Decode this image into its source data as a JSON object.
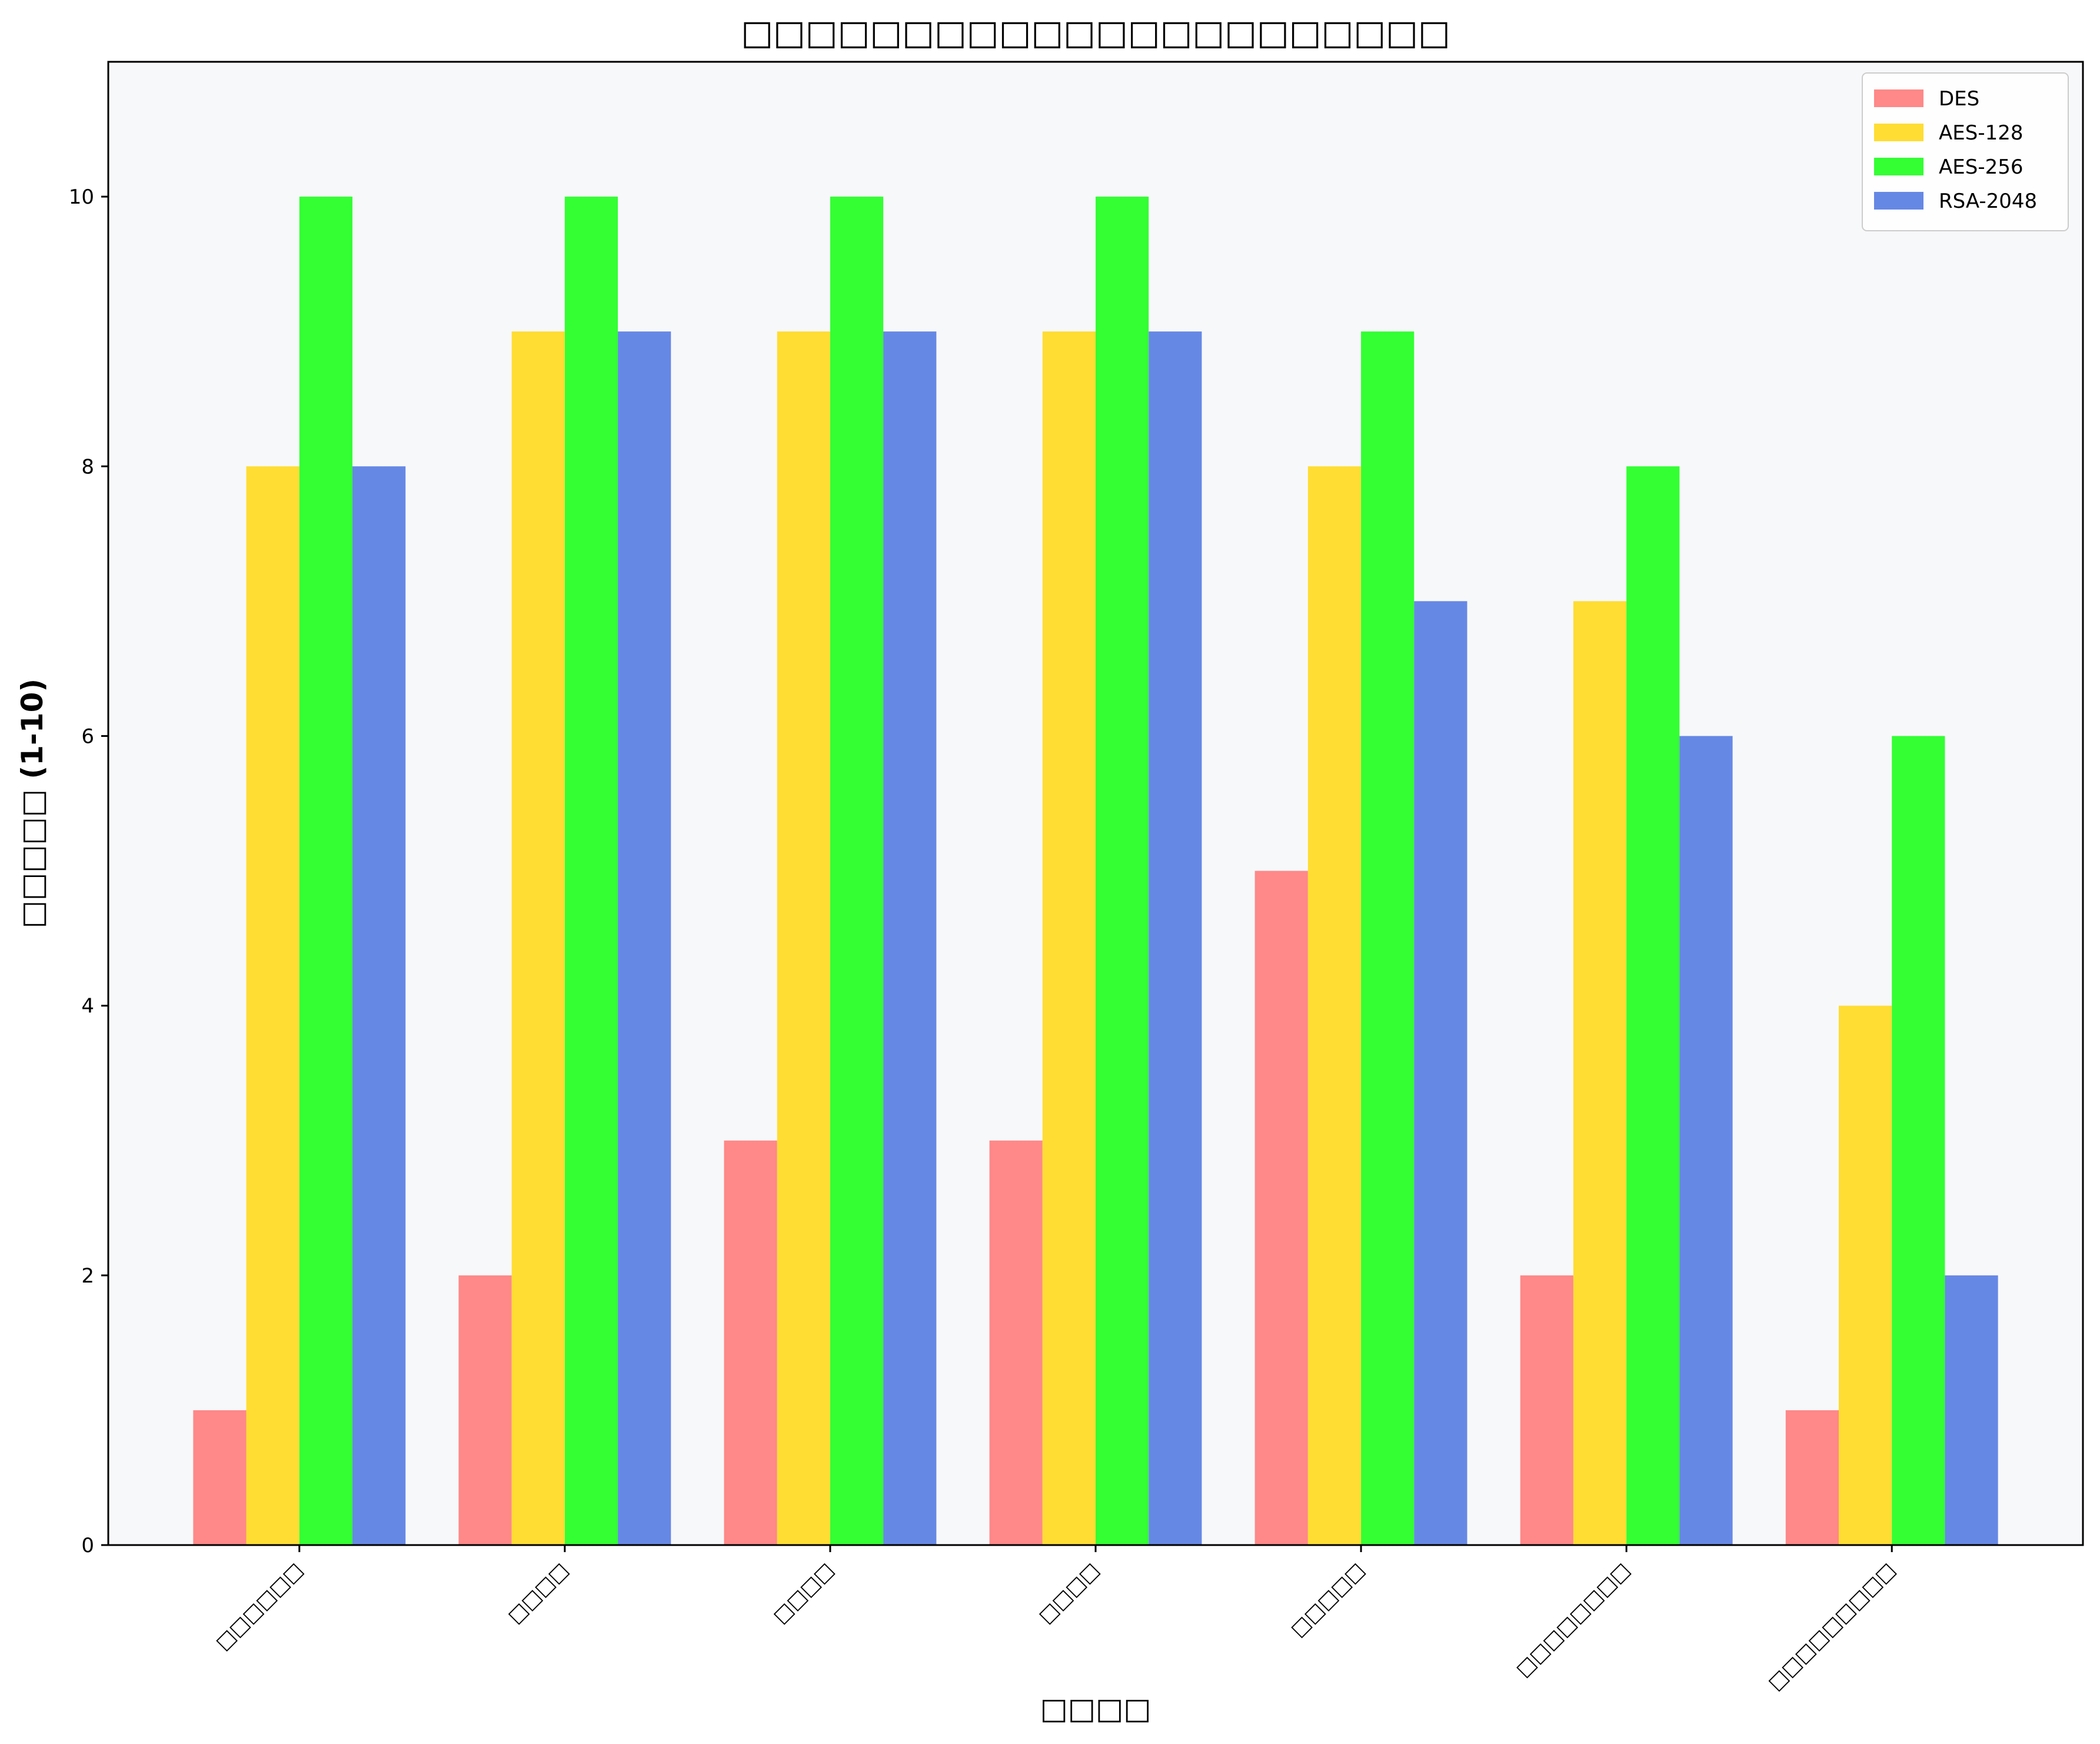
{
  "chart_data": {
    "type": "bar",
    "title": "□□□□□□□□□□□□□□□□□□□□□□",
    "xlabel": "□□□□",
    "ylabel": "□□□□□ (1-10)",
    "categories": [
      "□□□□□□",
      "□□□□",
      "□□□□",
      "□□□□",
      "□□□□□",
      "□□□□□□□□",
      "□□□□□□□□□"
    ],
    "series": [
      {
        "name": "DES",
        "color": "#ff8888",
        "values": [
          1,
          2,
          3,
          3,
          5,
          2,
          1
        ]
      },
      {
        "name": "AES-128",
        "color": "#ffdd33",
        "values": [
          8,
          9,
          9,
          9,
          8,
          7,
          4
        ]
      },
      {
        "name": "AES-256",
        "color": "#33ff33",
        "values": [
          10,
          10,
          10,
          10,
          9,
          8,
          6
        ]
      },
      {
        "name": "RSA-2048",
        "color": "#6688e5",
        "values": [
          8,
          9,
          9,
          9,
          7,
          6,
          2
        ]
      }
    ],
    "ylim": [
      0,
      11
    ],
    "yticks": [
      0,
      2,
      4,
      6,
      8,
      10
    ],
    "grid": false,
    "legend": "top-right",
    "plot_background": "#f7f8fa"
  }
}
